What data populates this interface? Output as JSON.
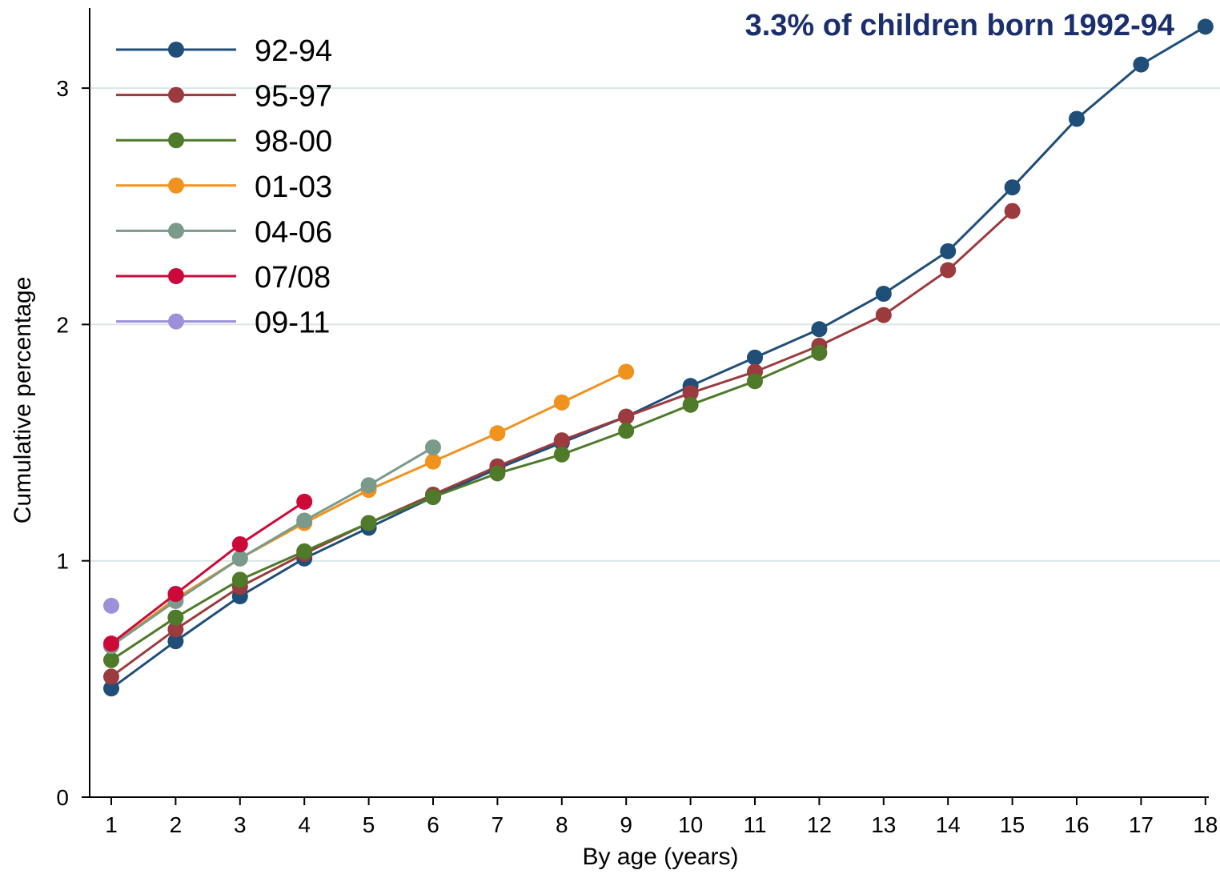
{
  "chart_data": {
    "type": "line",
    "annotation": "3.3% of children born 1992-94",
    "annotation_color": "#1a2f6b",
    "xlabel": "By age (years)",
    "ylabel": "Cumulative percentage",
    "xlim": [
      0.7,
      18
    ],
    "ylim": [
      0,
      3.35
    ],
    "x_ticks": [
      1,
      2,
      3,
      4,
      5,
      6,
      7,
      8,
      9,
      10,
      11,
      12,
      13,
      14,
      15,
      16,
      17,
      18
    ],
    "y_ticks": [
      0,
      1,
      2,
      3
    ],
    "grid": true,
    "legend_position": "top-left",
    "series": [
      {
        "name": "92-94",
        "color": "#1f4e79",
        "x": [
          1,
          2,
          3,
          4,
          5,
          6,
          7,
          8,
          9,
          10,
          11,
          12,
          13,
          14,
          15,
          16,
          17,
          18
        ],
        "values": [
          0.46,
          0.66,
          0.85,
          1.01,
          1.14,
          1.27,
          1.39,
          1.5,
          1.61,
          1.74,
          1.86,
          1.98,
          2.13,
          2.31,
          2.58,
          2.87,
          3.1,
          3.26
        ]
      },
      {
        "name": "95-97",
        "color": "#9b3b3f",
        "x": [
          1,
          2,
          3,
          4,
          5,
          6,
          7,
          8,
          9,
          10,
          11,
          12,
          13,
          14,
          15
        ],
        "values": [
          0.51,
          0.71,
          0.89,
          1.03,
          1.16,
          1.28,
          1.4,
          1.51,
          1.61,
          1.71,
          1.8,
          1.91,
          2.04,
          2.23,
          2.48
        ]
      },
      {
        "name": "98-00",
        "color": "#4e7a2a",
        "x": [
          1,
          2,
          3,
          4,
          5,
          6,
          7,
          8,
          9,
          10,
          11,
          12
        ],
        "values": [
          0.58,
          0.76,
          0.92,
          1.04,
          1.16,
          1.27,
          1.37,
          1.45,
          1.55,
          1.66,
          1.76,
          1.88
        ]
      },
      {
        "name": "01-03",
        "color": "#f0921e",
        "x": [
          1,
          2,
          3,
          4,
          5,
          6,
          7,
          8,
          9
        ],
        "values": [
          0.64,
          0.84,
          1.01,
          1.16,
          1.3,
          1.42,
          1.54,
          1.67,
          1.8
        ]
      },
      {
        "name": "04-06",
        "color": "#7a9a8c",
        "x": [
          1,
          2,
          3,
          4,
          5,
          6
        ],
        "values": [
          0.64,
          0.83,
          1.01,
          1.17,
          1.32,
          1.48
        ]
      },
      {
        "name": "07/08",
        "color": "#cc0a3a",
        "x": [
          1,
          2,
          3,
          4
        ],
        "values": [
          0.65,
          0.86,
          1.07,
          1.25
        ]
      },
      {
        "name": "09-11",
        "color": "#9c91d9",
        "x": [
          1
        ],
        "values": [
          0.81
        ]
      }
    ]
  }
}
